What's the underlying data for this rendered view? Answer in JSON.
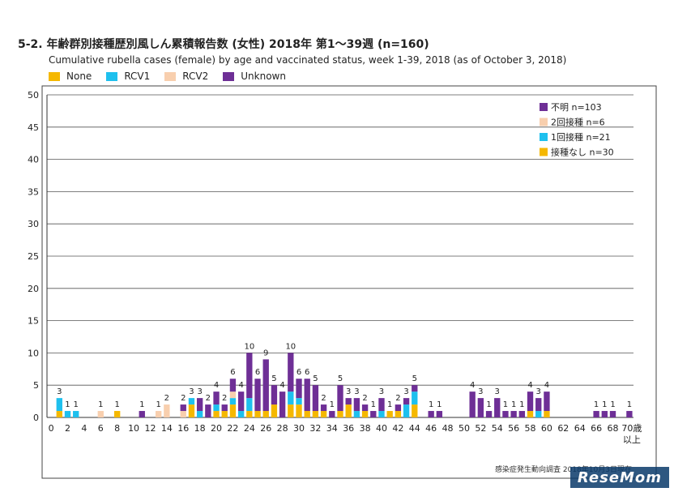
{
  "title": "5-2. 年齢群別接種歴別風しん累積報告数 (女性)  2018年 第1～39週 (n=160)",
  "subtitle": "Cumulative rubella cases (female) by age and vaccinated status, week 1-39, 2018 (as of October 3, 2018)",
  "legend_top": [
    {
      "label": "None",
      "color": "#f5b800"
    },
    {
      "label": "RCV1",
      "color": "#1ec0ee"
    },
    {
      "label": "RCV2",
      "color": "#f8cfae"
    },
    {
      "label": "Unknown",
      "color": "#6e2f96"
    }
  ],
  "footer": "感染症発生動向調査 2018年10月3日現在",
  "logo": "ReseMom",
  "chart_data": {
    "type": "bar",
    "stacked": true,
    "ylim": [
      0,
      50
    ],
    "y_ticks": [
      "0",
      "5",
      "10",
      "15",
      "20",
      "25",
      "30",
      "35",
      "40",
      "45",
      "50"
    ],
    "x_ticks": [
      "0",
      "2",
      "4",
      "6",
      "8",
      "10",
      "12",
      "14",
      "16",
      "18",
      "20",
      "22",
      "24",
      "26",
      "28",
      "30",
      "32",
      "34",
      "36",
      "38",
      "40",
      "42",
      "44",
      "46",
      "48",
      "50",
      "52",
      "54",
      "56",
      "58",
      "60",
      "62",
      "64",
      "66",
      "68",
      "70歳"
    ],
    "x_tick_extra": "以上",
    "grid": true,
    "legend_inner": [
      {
        "label": "不明 n=103",
        "color": "#6e2f96"
      },
      {
        "label": "2回接種 n=6",
        "color": "#f8cfae"
      },
      {
        "label": "1回接種 n=21",
        "color": "#1ec0ee"
      },
      {
        "label": "接種なし n=30",
        "color": "#f5b800"
      }
    ],
    "legend_position": "top-right",
    "series_colors": {
      "none": "#f5b800",
      "rcv1": "#1ec0ee",
      "rcv2": "#f8cfae",
      "unknown": "#6e2f96"
    },
    "bars": [
      {
        "age": 1,
        "none": 1,
        "rcv1": 2,
        "rcv2": 0,
        "unknown": 0,
        "label": "3"
      },
      {
        "age": 2,
        "none": 0,
        "rcv1": 1,
        "rcv2": 0,
        "unknown": 0,
        "label": "1"
      },
      {
        "age": 3,
        "none": 0,
        "rcv1": 1,
        "rcv2": 0,
        "unknown": 0,
        "label": "1"
      },
      {
        "age": 6,
        "none": 0,
        "rcv1": 0,
        "rcv2": 1,
        "unknown": 0,
        "label": "1"
      },
      {
        "age": 8,
        "none": 1,
        "rcv1": 0,
        "rcv2": 0,
        "unknown": 0,
        "label": "1"
      },
      {
        "age": 11,
        "none": 0,
        "rcv1": 0,
        "rcv2": 0,
        "unknown": 1,
        "label": "1"
      },
      {
        "age": 13,
        "none": 0,
        "rcv1": 0,
        "rcv2": 1,
        "unknown": 0,
        "label": "1"
      },
      {
        "age": 14,
        "none": 0,
        "rcv1": 0,
        "rcv2": 2,
        "unknown": 0,
        "label": "2"
      },
      {
        "age": 16,
        "none": 0,
        "rcv1": 0,
        "rcv2": 1,
        "unknown": 1,
        "label": "2"
      },
      {
        "age": 17,
        "none": 2,
        "rcv1": 1,
        "rcv2": 0,
        "unknown": 0,
        "label": "3"
      },
      {
        "age": 18,
        "none": 0,
        "rcv1": 1,
        "rcv2": 0,
        "unknown": 2,
        "label": "3"
      },
      {
        "age": 19,
        "none": 0,
        "rcv1": 0,
        "rcv2": 0,
        "unknown": 2,
        "label": "2"
      },
      {
        "age": 20,
        "none": 1,
        "rcv1": 1,
        "rcv2": 0,
        "unknown": 2,
        "label": "4"
      },
      {
        "age": 21,
        "none": 1,
        "rcv1": 0,
        "rcv2": 0,
        "unknown": 1,
        "label": "2"
      },
      {
        "age": 22,
        "none": 2,
        "rcv1": 1,
        "rcv2": 1,
        "unknown": 2,
        "label": "6"
      },
      {
        "age": 23,
        "none": 0,
        "rcv1": 1,
        "rcv2": 0,
        "unknown": 3,
        "label": "4"
      },
      {
        "age": 24,
        "none": 1,
        "rcv1": 2,
        "rcv2": 0,
        "unknown": 7,
        "label": "10"
      },
      {
        "age": 25,
        "none": 1,
        "rcv1": 0,
        "rcv2": 0,
        "unknown": 5,
        "label": "6"
      },
      {
        "age": 26,
        "none": 1,
        "rcv1": 0,
        "rcv2": 0,
        "unknown": 8,
        "label": "9"
      },
      {
        "age": 27,
        "none": 2,
        "rcv1": 0,
        "rcv2": 0,
        "unknown": 3,
        "label": "5"
      },
      {
        "age": 28,
        "none": 0,
        "rcv1": 0,
        "rcv2": 0,
        "unknown": 4,
        "label": "4"
      },
      {
        "age": 29,
        "none": 2,
        "rcv1": 2,
        "rcv2": 0,
        "unknown": 6,
        "label": "10"
      },
      {
        "age": 30,
        "none": 2,
        "rcv1": 1,
        "rcv2": 0,
        "unknown": 3,
        "label": "6"
      },
      {
        "age": 31,
        "none": 1,
        "rcv1": 0,
        "rcv2": 0,
        "unknown": 5,
        "label": "6"
      },
      {
        "age": 32,
        "none": 1,
        "rcv1": 0,
        "rcv2": 0,
        "unknown": 4,
        "label": "5"
      },
      {
        "age": 33,
        "none": 1,
        "rcv1": 0,
        "rcv2": 0,
        "unknown": 1,
        "label": "2"
      },
      {
        "age": 34,
        "none": 0,
        "rcv1": 0,
        "rcv2": 0,
        "unknown": 1,
        "label": "1"
      },
      {
        "age": 35,
        "none": 1,
        "rcv1": 0,
        "rcv2": 0,
        "unknown": 4,
        "label": "5"
      },
      {
        "age": 36,
        "none": 2,
        "rcv1": 0,
        "rcv2": 0,
        "unknown": 1,
        "label": "3"
      },
      {
        "age": 37,
        "none": 0,
        "rcv1": 1,
        "rcv2": 0,
        "unknown": 2,
        "label": "3"
      },
      {
        "age": 38,
        "none": 1,
        "rcv1": 0,
        "rcv2": 0,
        "unknown": 1,
        "label": "2"
      },
      {
        "age": 39,
        "none": 0,
        "rcv1": 0,
        "rcv2": 0,
        "unknown": 1,
        "label": "1"
      },
      {
        "age": 40,
        "none": 0,
        "rcv1": 1,
        "rcv2": 0,
        "unknown": 2,
        "label": "3"
      },
      {
        "age": 41,
        "none": 1,
        "rcv1": 0,
        "rcv2": 0,
        "unknown": 0,
        "label": "1"
      },
      {
        "age": 42,
        "none": 1,
        "rcv1": 0,
        "rcv2": 0,
        "unknown": 1,
        "label": "2"
      },
      {
        "age": 43,
        "none": 0,
        "rcv1": 2,
        "rcv2": 0,
        "unknown": 1,
        "label": "3"
      },
      {
        "age": 44,
        "none": 2,
        "rcv1": 2,
        "rcv2": 0,
        "unknown": 1,
        "label": "5"
      },
      {
        "age": 46,
        "none": 0,
        "rcv1": 0,
        "rcv2": 0,
        "unknown": 1,
        "label": "1"
      },
      {
        "age": 47,
        "none": 0,
        "rcv1": 0,
        "rcv2": 0,
        "unknown": 1,
        "label": "1"
      },
      {
        "age": 51,
        "none": 0,
        "rcv1": 0,
        "rcv2": 0,
        "unknown": 4,
        "label": "4"
      },
      {
        "age": 52,
        "none": 0,
        "rcv1": 0,
        "rcv2": 0,
        "unknown": 3,
        "label": "3"
      },
      {
        "age": 53,
        "none": 0,
        "rcv1": 0,
        "rcv2": 0,
        "unknown": 1,
        "label": "1"
      },
      {
        "age": 54,
        "none": 0,
        "rcv1": 0,
        "rcv2": 0,
        "unknown": 3,
        "label": "3"
      },
      {
        "age": 55,
        "none": 0,
        "rcv1": 0,
        "rcv2": 0,
        "unknown": 1,
        "label": "1"
      },
      {
        "age": 56,
        "none": 0,
        "rcv1": 0,
        "rcv2": 0,
        "unknown": 1,
        "label": "1"
      },
      {
        "age": 57,
        "none": 0,
        "rcv1": 0,
        "rcv2": 0,
        "unknown": 1,
        "label": "1"
      },
      {
        "age": 58,
        "none": 1,
        "rcv1": 0,
        "rcv2": 0,
        "unknown": 3,
        "label": "4"
      },
      {
        "age": 59,
        "none": 0,
        "rcv1": 1,
        "rcv2": 0,
        "unknown": 2,
        "label": "3"
      },
      {
        "age": 60,
        "none": 1,
        "rcv1": 0,
        "rcv2": 0,
        "unknown": 3,
        "label": "4"
      },
      {
        "age": 66,
        "none": 0,
        "rcv1": 0,
        "rcv2": 0,
        "unknown": 1,
        "label": "1"
      },
      {
        "age": 67,
        "none": 0,
        "rcv1": 0,
        "rcv2": 0,
        "unknown": 1,
        "label": "1"
      },
      {
        "age": 68,
        "none": 0,
        "rcv1": 0,
        "rcv2": 0,
        "unknown": 1,
        "label": "1"
      },
      {
        "age": 70,
        "none": 0,
        "rcv1": 0,
        "rcv2": 0,
        "unknown": 1,
        "label": "1"
      }
    ]
  }
}
